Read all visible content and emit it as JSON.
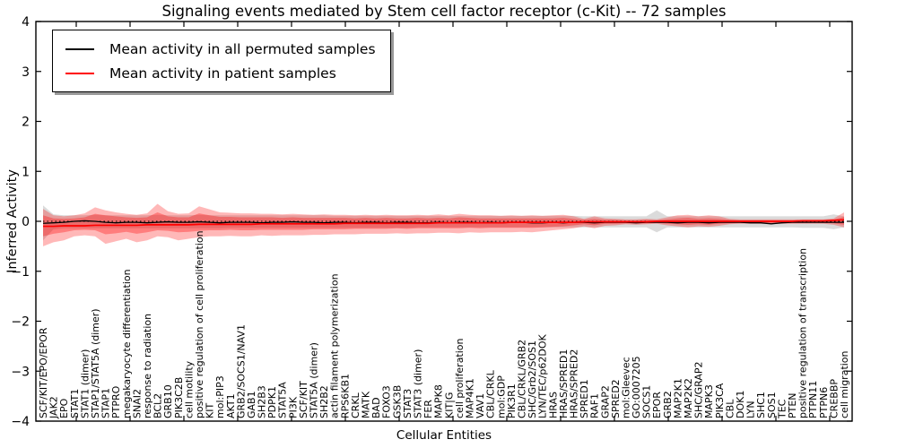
{
  "title": "Signaling events mediated by Stem cell factor receptor (c-Kit) -- 72 samples",
  "axes": {
    "ylabel": "Inferred Activity",
    "xlabel": "Cellular Entities",
    "ylim": [
      -4,
      4
    ],
    "yticks": [
      {
        "value": 4,
        "label": "4"
      },
      {
        "value": 3,
        "label": "3"
      },
      {
        "value": 2,
        "label": "2"
      },
      {
        "value": 1,
        "label": "1"
      },
      {
        "value": 0,
        "label": "0"
      },
      {
        "value": -1,
        "label": "−1"
      },
      {
        "value": -2,
        "label": "−2"
      },
      {
        "value": -3,
        "label": "−3"
      },
      {
        "value": -4,
        "label": "−4"
      }
    ],
    "grid": false
  },
  "legend": {
    "position": "upper left",
    "items": [
      {
        "label": "Mean activity in all permuted samples",
        "color": "#000000"
      },
      {
        "label": "Mean activity in patient samples",
        "color": "#ff0000"
      }
    ]
  },
  "chart_data": {
    "type": "line",
    "title": "Signaling events mediated by Stem cell factor receptor (c-Kit) -- 72 samples",
    "xlabel": "Cellular Entities",
    "ylabel": "Inferred Activity",
    "ylim": [
      -4,
      4
    ],
    "grid": false,
    "legend_position": "upper left",
    "zero_line": true,
    "categories": [
      "SCF/KIT/EPO/EPOR",
      "JAK2",
      "EPO",
      "STAT1",
      "STAT1 (dimer)",
      "STAP1/STAT5A (dimer)",
      "STAP1",
      "PTPRO",
      "megakaryocyte differentiation",
      "SNAI2",
      "response to radiation",
      "BCL2",
      "GRB10",
      "PIK3C2B",
      "cell motility",
      "positive regulation of cell proliferation",
      "KIT",
      "mol:PIP3",
      "AKT1",
      "GRB2/SOCS1/NAV1",
      "GAB1",
      "SH2B3",
      "PDPK1",
      "STAT5A",
      "PI3K",
      "SCF/KIT",
      "STAT5A (dimer)",
      "SH2B2",
      "actin filament polymerization",
      "RPS6KB1",
      "CRKL",
      "MATK",
      "BAD",
      "FOXO3",
      "GSK3B",
      "STAT3",
      "STAT3 (dimer)",
      "FER",
      "MAPK8",
      "KIT|G",
      "cell proliferation",
      "MAP4K1",
      "VAV1",
      "CBL/CRKL",
      "mol:GDP",
      "PIK3R1",
      "CBL/CRKL/GRB2",
      "SHC/Grb2/SOS1",
      "LYN/TEC/p62DOK",
      "HRAS",
      "HRAS/SPRED1",
      "HRAS/SPRED2",
      "SPRED1",
      "RAF1",
      "GRAP2",
      "SPRED2",
      "mol:Gleevec",
      "GO:0007205",
      "SOCS1",
      "EPOR",
      "GRB2",
      "MAP2K1",
      "MAP2K2",
      "SHC/GRAP2",
      "MAPK3",
      "PIK3CA",
      "CBL",
      "DOK1",
      "LYN",
      "SHC1",
      "SOS1",
      "TEC",
      "PTEN",
      "positive regulation of transcription",
      "PTPN11",
      "PTPN6",
      "CREBBP",
      "cell migration"
    ],
    "series": [
      {
        "name": "Mean activity in all permuted samples",
        "id": "permuted-mean-line",
        "color": "#000000",
        "values": [
          -0.04,
          -0.03,
          -0.02,
          0.0,
          0.01,
          0.0,
          -0.02,
          -0.03,
          -0.02,
          -0.02,
          -0.03,
          -0.02,
          -0.01,
          -0.02,
          -0.02,
          -0.01,
          -0.02,
          -0.03,
          -0.02,
          -0.02,
          -0.02,
          -0.03,
          -0.02,
          -0.02,
          -0.01,
          -0.02,
          -0.02,
          -0.03,
          -0.02,
          -0.02,
          -0.03,
          -0.02,
          -0.02,
          -0.03,
          -0.02,
          -0.02,
          -0.03,
          -0.03,
          -0.02,
          -0.03,
          -0.02,
          -0.02,
          -0.03,
          -0.02,
          -0.03,
          -0.02,
          -0.02,
          -0.03,
          -0.03,
          -0.02,
          -0.03,
          -0.02,
          -0.02,
          -0.03,
          -0.02,
          -0.02,
          -0.02,
          -0.03,
          -0.02,
          -0.02,
          -0.02,
          -0.03,
          -0.02,
          -0.02,
          -0.03,
          -0.02,
          -0.02,
          -0.02,
          -0.03,
          -0.03,
          -0.05,
          -0.03,
          -0.02,
          -0.02,
          -0.02,
          -0.02,
          -0.02,
          -0.02
        ]
      },
      {
        "name": "Mean activity in patient samples",
        "id": "patient-mean-line",
        "color": "#ff0000",
        "values": [
          -0.1,
          -0.1,
          -0.09,
          -0.09,
          -0.09,
          -0.08,
          -0.08,
          -0.08,
          -0.08,
          -0.08,
          -0.07,
          -0.07,
          -0.07,
          -0.07,
          -0.07,
          -0.06,
          -0.06,
          -0.06,
          -0.06,
          -0.06,
          -0.06,
          -0.05,
          -0.05,
          -0.05,
          -0.05,
          -0.05,
          -0.05,
          -0.05,
          -0.05,
          -0.04,
          -0.04,
          -0.04,
          -0.04,
          -0.04,
          -0.04,
          -0.04,
          -0.04,
          -0.04,
          -0.03,
          -0.03,
          -0.03,
          -0.03,
          -0.03,
          -0.03,
          -0.03,
          -0.02,
          -0.02,
          -0.02,
          -0.02,
          -0.02,
          -0.02,
          -0.02,
          -0.01,
          -0.01,
          -0.01,
          -0.01,
          -0.01,
          -0.01,
          -0.01,
          0.0,
          0.0,
          0.0,
          0.0,
          0.0,
          0.0,
          0.0,
          0.0,
          0.0,
          0.0,
          0.0,
          0.0,
          0.0,
          0.0,
          0.01,
          0.01,
          0.01,
          0.02,
          0.03
        ]
      }
    ],
    "bands": [
      {
        "name": "permuted-range",
        "color": "#999999",
        "alpha": 0.35,
        "hi": [
          0.32,
          0.14,
          0.12,
          0.12,
          0.12,
          0.13,
          0.12,
          0.12,
          0.12,
          0.12,
          0.12,
          0.13,
          0.12,
          0.12,
          0.12,
          0.13,
          0.12,
          0.12,
          0.12,
          0.12,
          0.12,
          0.12,
          0.12,
          0.12,
          0.12,
          0.12,
          0.12,
          0.12,
          0.11,
          0.11,
          0.11,
          0.11,
          0.11,
          0.11,
          0.11,
          0.11,
          0.11,
          0.11,
          0.11,
          0.11,
          0.11,
          0.11,
          0.11,
          0.11,
          0.11,
          0.11,
          0.11,
          0.11,
          0.11,
          0.11,
          0.11,
          0.11,
          0.1,
          0.1,
          0.1,
          0.1,
          0.1,
          0.1,
          0.1,
          0.22,
          0.1,
          0.1,
          0.1,
          0.1,
          0.1,
          0.1,
          0.1,
          0.1,
          0.1,
          0.1,
          0.1,
          0.1,
          0.1,
          0.1,
          0.1,
          0.1,
          0.14,
          0.1
        ],
        "lo": [
          -0.38,
          -0.16,
          -0.14,
          -0.14,
          -0.14,
          -0.14,
          -0.14,
          -0.14,
          -0.14,
          -0.14,
          -0.14,
          -0.14,
          -0.14,
          -0.14,
          -0.14,
          -0.14,
          -0.14,
          -0.14,
          -0.13,
          -0.13,
          -0.13,
          -0.13,
          -0.13,
          -0.13,
          -0.13,
          -0.13,
          -0.13,
          -0.13,
          -0.13,
          -0.13,
          -0.13,
          -0.13,
          -0.13,
          -0.13,
          -0.13,
          -0.13,
          -0.12,
          -0.12,
          -0.12,
          -0.12,
          -0.12,
          -0.12,
          -0.12,
          -0.12,
          -0.12,
          -0.12,
          -0.12,
          -0.12,
          -0.12,
          -0.12,
          -0.12,
          -0.12,
          -0.12,
          -0.12,
          -0.12,
          -0.12,
          -0.12,
          -0.12,
          -0.12,
          -0.22,
          -0.12,
          -0.12,
          -0.12,
          -0.12,
          -0.12,
          -0.12,
          -0.12,
          -0.12,
          -0.12,
          -0.12,
          -0.12,
          -0.12,
          -0.12,
          -0.13,
          -0.13,
          -0.13,
          -0.16,
          -0.12
        ]
      },
      {
        "name": "patient-range-outer",
        "color": "#ff0000",
        "alpha": 0.28,
        "hi": [
          0.25,
          0.12,
          0.1,
          0.12,
          0.16,
          0.28,
          0.22,
          0.18,
          0.15,
          0.13,
          0.16,
          0.35,
          0.2,
          0.15,
          0.16,
          0.3,
          0.24,
          0.18,
          0.17,
          0.16,
          0.16,
          0.15,
          0.15,
          0.14,
          0.15,
          0.14,
          0.13,
          0.14,
          0.13,
          0.13,
          0.12,
          0.13,
          0.12,
          0.13,
          0.12,
          0.12,
          0.13,
          0.12,
          0.14,
          0.12,
          0.15,
          0.13,
          0.12,
          0.12,
          0.11,
          0.12,
          0.11,
          0.12,
          0.11,
          0.12,
          0.13,
          0.1,
          0.05,
          0.1,
          0.06,
          0.05,
          0.04,
          0.04,
          0.05,
          0.04,
          0.08,
          0.12,
          0.13,
          0.1,
          0.12,
          0.1,
          0.05,
          0.04,
          0.04,
          0.04,
          0.04,
          0.04,
          0.04,
          0.04,
          0.04,
          0.04,
          0.06,
          0.18
        ],
        "lo": [
          -0.5,
          -0.42,
          -0.38,
          -0.3,
          -0.28,
          -0.3,
          -0.45,
          -0.4,
          -0.35,
          -0.42,
          -0.38,
          -0.3,
          -0.32,
          -0.38,
          -0.35,
          -0.32,
          -0.3,
          -0.3,
          -0.29,
          -0.3,
          -0.3,
          -0.28,
          -0.29,
          -0.28,
          -0.28,
          -0.28,
          -0.27,
          -0.27,
          -0.26,
          -0.26,
          -0.26,
          -0.25,
          -0.25,
          -0.25,
          -0.24,
          -0.25,
          -0.24,
          -0.24,
          -0.23,
          -0.23,
          -0.24,
          -0.22,
          -0.23,
          -0.22,
          -0.22,
          -0.22,
          -0.21,
          -0.22,
          -0.2,
          -0.18,
          -0.16,
          -0.14,
          -0.1,
          -0.14,
          -0.09,
          -0.08,
          -0.06,
          -0.07,
          -0.06,
          -0.05,
          -0.08,
          -0.1,
          -0.12,
          -0.1,
          -0.11,
          -0.09,
          -0.06,
          -0.05,
          -0.05,
          -0.05,
          -0.05,
          -0.05,
          -0.05,
          -0.05,
          -0.05,
          -0.05,
          -0.07,
          -0.12
        ]
      },
      {
        "name": "patient-range-inner",
        "color": "#ff0000",
        "alpha": 0.32,
        "hi": [
          0.12,
          0.06,
          0.05,
          0.06,
          0.08,
          0.15,
          0.12,
          0.1,
          0.08,
          0.07,
          0.08,
          0.18,
          0.1,
          0.08,
          0.08,
          0.16,
          0.12,
          0.09,
          0.09,
          0.08,
          0.08,
          0.08,
          0.08,
          0.07,
          0.08,
          0.07,
          0.07,
          0.07,
          0.07,
          0.07,
          0.06,
          0.07,
          0.06,
          0.07,
          0.06,
          0.06,
          0.07,
          0.06,
          0.07,
          0.06,
          0.08,
          0.07,
          0.06,
          0.06,
          0.06,
          0.06,
          0.06,
          0.06,
          0.06,
          0.06,
          0.07,
          0.05,
          0.03,
          0.05,
          0.03,
          0.03,
          0.02,
          0.02,
          0.03,
          0.02,
          0.04,
          0.06,
          0.07,
          0.05,
          0.06,
          0.05,
          0.03,
          0.02,
          0.02,
          0.02,
          0.02,
          0.02,
          0.02,
          0.02,
          0.02,
          0.02,
          0.03,
          0.09
        ],
        "lo": [
          -0.3,
          -0.25,
          -0.22,
          -0.18,
          -0.17,
          -0.18,
          -0.26,
          -0.24,
          -0.21,
          -0.25,
          -0.22,
          -0.18,
          -0.19,
          -0.22,
          -0.21,
          -0.19,
          -0.18,
          -0.18,
          -0.17,
          -0.18,
          -0.18,
          -0.17,
          -0.17,
          -0.17,
          -0.17,
          -0.17,
          -0.16,
          -0.16,
          -0.16,
          -0.16,
          -0.15,
          -0.15,
          -0.15,
          -0.15,
          -0.14,
          -0.15,
          -0.14,
          -0.14,
          -0.14,
          -0.14,
          -0.14,
          -0.13,
          -0.14,
          -0.13,
          -0.13,
          -0.13,
          -0.13,
          -0.13,
          -0.12,
          -0.11,
          -0.1,
          -0.08,
          -0.06,
          -0.08,
          -0.05,
          -0.05,
          -0.04,
          -0.04,
          -0.04,
          -0.03,
          -0.05,
          -0.06,
          -0.07,
          -0.06,
          -0.07,
          -0.05,
          -0.04,
          -0.03,
          -0.03,
          -0.03,
          -0.03,
          -0.03,
          -0.03,
          -0.03,
          -0.03,
          -0.03,
          -0.04,
          -0.07
        ]
      }
    ]
  }
}
